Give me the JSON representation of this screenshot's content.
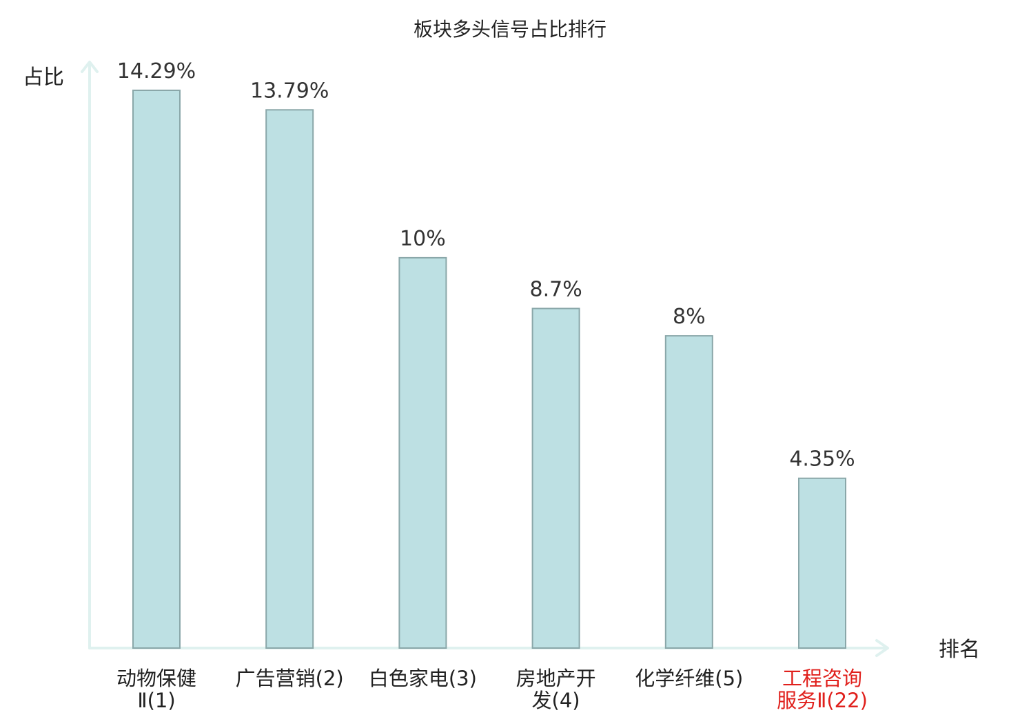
{
  "chart_data": {
    "type": "bar",
    "title": "板块多头信号占比排行",
    "ylabel": "占比",
    "xlabel": "排名",
    "categories": [
      [
        "动物保健",
        "Ⅱ(1)"
      ],
      [
        "广告营销(2)"
      ],
      [
        "白色家电(3)"
      ],
      [
        "房地产开",
        "发(4)"
      ],
      [
        "化学纤维(5)"
      ],
      [
        "工程咨询",
        "服务Ⅱ(22)"
      ]
    ],
    "values": [
      14.29,
      13.79,
      10,
      8.7,
      8,
      4.35
    ],
    "value_labels": [
      "14.29%",
      "13.79%",
      "10%",
      "8.7%",
      "8%",
      "4.35%"
    ],
    "highlight_index": 5,
    "ylim": [
      0,
      14.29
    ],
    "colors": {
      "bar_fill": "#bde0e3",
      "bar_stroke": "#8aa7a9",
      "axis": "#dff1ef",
      "highlight_text": "#e0201c"
    }
  }
}
